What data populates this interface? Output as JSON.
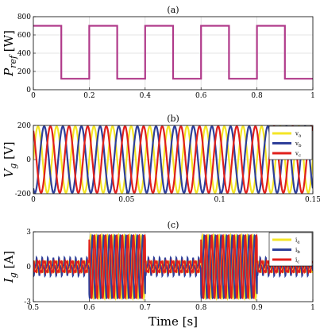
{
  "chart_data": [
    {
      "id": "a",
      "type": "line",
      "panel_label": "(a)",
      "ylabel": {
        "main": "P",
        "sub": "ref",
        "unit": "[W]"
      },
      "xlabel": "",
      "xlim": [
        0,
        1
      ],
      "ylim": [
        0,
        800
      ],
      "xticks": [
        "0",
        "0.2",
        "0.4",
        "0.6",
        "0.8",
        "1"
      ],
      "yticks": [
        "0",
        "200",
        "400",
        "600",
        "800"
      ],
      "grid": true,
      "series": [
        {
          "color": "#b03a8a",
          "x": [
            0,
            0.1,
            0.1,
            0.2,
            0.2,
            0.3,
            0.3,
            0.4,
            0.4,
            0.5,
            0.5,
            0.6,
            0.6,
            0.7,
            0.7,
            0.8,
            0.8,
            0.9,
            0.9,
            1.0
          ],
          "y": [
            700,
            700,
            120,
            120,
            700,
            700,
            120,
            120,
            700,
            700,
            120,
            120,
            700,
            700,
            120,
            120,
            700,
            700,
            120,
            120
          ]
        }
      ]
    },
    {
      "id": "b",
      "type": "line",
      "panel_label": "(b)",
      "ylabel": {
        "main": "V",
        "sub": "g",
        "unit": "[V]"
      },
      "xlabel": "",
      "xlim": [
        0,
        0.15
      ],
      "ylim": [
        -200,
        200
      ],
      "xticks": [
        "0",
        "0.05",
        "0.1",
        "0.15"
      ],
      "yticks": [
        "-200",
        "0",
        "200"
      ],
      "grid": true,
      "legend": {
        "position": "top-right",
        "labels": [
          "v",
          "v",
          "v"
        ],
        "subs": [
          "a",
          "b",
          "c"
        ]
      },
      "waveform": {
        "amplitude": 195,
        "frequency_hz": 100,
        "phase_shift_deg": [
          0,
          -120,
          120
        ]
      },
      "series": [
        {
          "color": "#f4e526"
        },
        {
          "color": "#2e3f99"
        },
        {
          "color": "#e0201c"
        }
      ]
    },
    {
      "id": "c",
      "type": "line",
      "panel_label": "(c)",
      "ylabel": {
        "main": "I",
        "sub": "g",
        "unit": "[A]"
      },
      "xlabel": "Time [s]",
      "xlim": [
        0.5,
        1.0
      ],
      "ylim": [
        -3,
        3
      ],
      "xticks": [
        "0.5",
        "0.6",
        "0.7",
        "0.8",
        "0.9",
        "1"
      ],
      "yticks": [
        "-3",
        "0",
        "3"
      ],
      "grid": true,
      "legend": {
        "position": "top-right",
        "labels": [
          "i",
          "i",
          "i"
        ],
        "subs": [
          "a",
          "b",
          "c"
        ]
      },
      "waveform": {
        "frequency_hz": 100,
        "phase_shift_deg": [
          0,
          -120,
          120
        ],
        "high_amplitude": 2.7,
        "low_amplitude": 0.5,
        "high_intervals": [
          [
            0.6,
            0.7
          ],
          [
            0.8,
            0.9
          ]
        ]
      },
      "series": [
        {
          "color": "#f4e526"
        },
        {
          "color": "#2e3f99"
        },
        {
          "color": "#e0201c"
        }
      ]
    }
  ]
}
